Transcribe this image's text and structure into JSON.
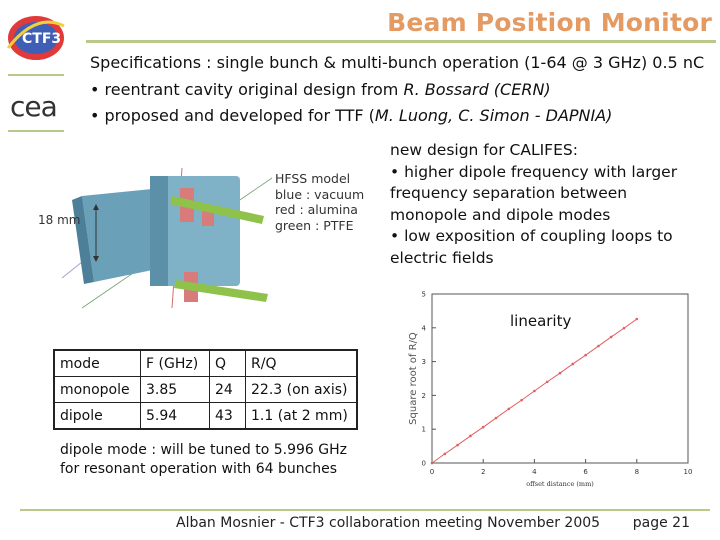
{
  "header": {
    "title": "Beam Position Monitor",
    "logos": {
      "left_top": "CTF3",
      "left_bottom": "cea"
    }
  },
  "specs": {
    "line1": "Specifications : single bunch & multi-bunch operation (1-64 @ 3 GHz) 0.5 nC",
    "line2_prefix": "• reentrant cavity original design from ",
    "line2_italic": "R. Bossard (CERN)",
    "line3_prefix": "• proposed and developed for TTF (",
    "line3_italic": "M. Luong, C. Simon - DAPNIA)"
  },
  "figure": {
    "dimension_label": "18 mm",
    "legend": [
      "HFSS model",
      "blue : vacuum",
      "red : alumina",
      "green : PTFE"
    ]
  },
  "new_design": [
    "new design for CALIFES:",
    "• higher dipole frequency with larger",
    "frequency separation between",
    "monopole and dipole modes",
    "• low exposition of coupling loops to",
    "electric fields"
  ],
  "table": {
    "headers": [
      "mode",
      "F (GHz)",
      "Q",
      "R/Q"
    ],
    "rows": [
      [
        "monopole",
        "3.85",
        "24",
        "22.3 (on axis)"
      ],
      [
        "dipole",
        "5.94",
        "43",
        "1.1 (at 2 mm)"
      ]
    ]
  },
  "tuning": [
    "dipole mode : will be tuned to 5.996 GHz",
    "for resonant operation with 64 bunches"
  ],
  "chart_data": {
    "type": "line",
    "title": "linearity",
    "xlabel": "offset distance (mm)",
    "ylabel": "Square root of R/Q",
    "xlim": [
      0,
      10
    ],
    "ylim": [
      0,
      5
    ],
    "xticks": [
      "0",
      "2",
      "4",
      "6",
      "8",
      "10"
    ],
    "yticks": [
      "0",
      "1",
      "2",
      "3",
      "4",
      "5"
    ],
    "series": [
      {
        "x": [
          0,
          0.5,
          1,
          1.5,
          2,
          2.5,
          3,
          3.5,
          4,
          4.5,
          5,
          5.5,
          6,
          6.5,
          7,
          7.5,
          8
        ],
        "y": [
          0,
          0.27,
          0.53,
          0.8,
          1.06,
          1.33,
          1.6,
          1.86,
          2.13,
          2.4,
          2.66,
          2.93,
          3.19,
          3.46,
          3.73,
          3.99,
          4.26
        ]
      }
    ],
    "colors": {
      "line": "#e06060",
      "axes": "#555555"
    },
    "grid": false
  },
  "footer": {
    "text": "Alban Mosnier - CTF3 collaboration meeting November 2005",
    "page": "page 21"
  }
}
